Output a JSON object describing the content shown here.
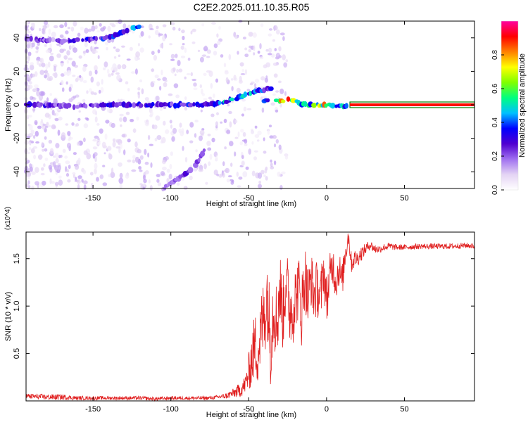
{
  "figure_title": "C2E2.2025.011.10.35.R05",
  "colorbar": {
    "label": "Normalized spectral amplitude",
    "ticks": [
      0.0,
      0.2,
      0.4,
      0.6,
      0.8
    ],
    "tick_labels": [
      "0.0",
      "0.2",
      "0.4",
      "0.6",
      "0.8"
    ],
    "range": [
      0,
      1
    ],
    "colormap": [
      "#ffffff",
      "#e4d4f4",
      "#a070f0",
      "#5000d0",
      "#0000ff",
      "#00c0ff",
      "#00ff80",
      "#80ff00",
      "#ffff00",
      "#ff8000",
      "#ff0000",
      "#ff00a0"
    ]
  },
  "chart_data": [
    {
      "type": "heatmap",
      "title": "",
      "xlabel": "Height of straight line (km)",
      "ylabel": "Frequency (Hz)",
      "xlim": [
        -193,
        95
      ],
      "ylim": [
        -50,
        50
      ],
      "xticks": [
        -150,
        -100,
        -50,
        0,
        50
      ],
      "xtick_labels": [
        "-150",
        "-100",
        "-50",
        "0",
        "50"
      ],
      "yticks": [
        -40,
        -20,
        0,
        20,
        40
      ],
      "ytick_labels": [
        "-40",
        "-20",
        "0",
        "20",
        "40"
      ],
      "line_color": "#008000",
      "tracks": [
        {
          "x": [
            -193,
            -175,
            -160,
            -140,
            -120,
            -100,
            -80,
            -70,
            -60,
            -52,
            -45,
            -40,
            -35
          ],
          "y": [
            0,
            0,
            -1,
            0,
            0,
            0,
            0,
            1,
            3,
            6,
            8,
            9,
            10
          ],
          "amp": [
            0.3,
            0.25,
            0.2,
            0.3,
            0.3,
            0.3,
            0.35,
            0.4,
            0.5,
            0.45,
            0.4,
            0.35,
            0.3
          ]
        },
        {
          "x": [
            -40,
            -35,
            -30,
            -25,
            -20,
            -15,
            -10,
            -5,
            0,
            5,
            10,
            15
          ],
          "y": [
            2,
            4,
            2,
            3,
            2,
            0,
            0,
            0,
            0,
            -1,
            -1,
            0
          ],
          "amp": [
            0.4,
            0.5,
            0.7,
            0.8,
            0.7,
            0.55,
            0.6,
            0.7,
            0.75,
            0.5,
            0.45,
            0.5
          ]
        },
        {
          "x": [
            -193,
            -170,
            -155,
            -140,
            -130,
            -120
          ],
          "y": [
            39,
            38,
            39,
            40,
            44,
            47
          ],
          "amp": [
            0.25,
            0.25,
            0.3,
            0.35,
            0.4,
            0.45
          ]
        },
        {
          "x": [
            -105,
            -95,
            -85,
            -78
          ],
          "y": [
            -50,
            -44,
            -38,
            -26
          ],
          "amp": [
            0.2,
            0.25,
            0.25,
            0.2
          ]
        }
      ],
      "steady_band": {
        "x": [
          15,
          95
        ],
        "y": 0,
        "amp": 0.9
      }
    },
    {
      "type": "line",
      "title": "",
      "xlabel": "Height of straight line (km)",
      "ylabel": "SNR (10 * v/v)",
      "yscale_label": "(x10^4)",
      "xlim": [
        -193,
        95
      ],
      "ylim": [
        0,
        1.78
      ],
      "xticks": [
        -150,
        -100,
        -50,
        0,
        50
      ],
      "xtick_labels": [
        "-150",
        "-100",
        "-50",
        "0",
        "50"
      ],
      "yticks": [
        0.5,
        1.0,
        1.5
      ],
      "ytick_labels": [
        "0.5",
        "1.0",
        "1.5"
      ],
      "line_color": "#e02020",
      "series": [
        {
          "x": [
            -193,
            -180,
            -170,
            -160,
            -150,
            -140,
            -130,
            -120,
            -110,
            -100,
            -90,
            -80,
            -75,
            -70,
            -65,
            -60,
            -55,
            -52,
            -50,
            -48,
            -46,
            -44,
            -42,
            -40,
            -38,
            -36,
            -34,
            -32,
            -30,
            -28,
            -26,
            -24,
            -22,
            -20,
            -18,
            -16,
            -14,
            -12,
            -10,
            -8,
            -6,
            -4,
            -2,
            0,
            2,
            4,
            6,
            8,
            10,
            12,
            14,
            16,
            18,
            20,
            22,
            25,
            28,
            31,
            34,
            37,
            40,
            45,
            50,
            60,
            70,
            80,
            90,
            95
          ],
          "y": [
            0.05,
            0.04,
            0.04,
            0.03,
            0.03,
            0.03,
            0.03,
            0.03,
            0.02,
            0.03,
            0.03,
            0.03,
            0.03,
            0.04,
            0.05,
            0.08,
            0.12,
            0.18,
            0.3,
            0.45,
            0.6,
            0.5,
            0.75,
            0.9,
            1.15,
            0.6,
            1.05,
            0.8,
            1.2,
            0.9,
            1.3,
            1.0,
            0.95,
            1.1,
            1.2,
            0.95,
            1.35,
            1.05,
            1.3,
            1.1,
            1.2,
            1.05,
            1.4,
            1.05,
            1.3,
            1.45,
            1.25,
            1.4,
            1.25,
            1.55,
            1.75,
            1.45,
            1.5,
            1.5,
            1.55,
            1.6,
            1.65,
            1.6,
            1.6,
            1.62,
            1.63,
            1.62,
            1.62,
            1.63,
            1.63,
            1.63,
            1.64,
            1.63
          ],
          "spread": [
            0.03,
            0.03,
            0.03,
            0.02,
            0.02,
            0.02,
            0.02,
            0.02,
            0.02,
            0.02,
            0.02,
            0.02,
            0.02,
            0.02,
            0.03,
            0.05,
            0.08,
            0.1,
            0.2,
            0.3,
            0.35,
            0.35,
            0.4,
            0.45,
            0.5,
            0.45,
            0.45,
            0.45,
            0.4,
            0.4,
            0.35,
            0.4,
            0.4,
            0.35,
            0.35,
            0.4,
            0.35,
            0.35,
            0.3,
            0.3,
            0.3,
            0.3,
            0.25,
            0.25,
            0.25,
            0.22,
            0.2,
            0.2,
            0.18,
            0.15,
            0.12,
            0.1,
            0.1,
            0.08,
            0.08,
            0.06,
            0.05,
            0.05,
            0.04,
            0.04,
            0.04,
            0.03,
            0.03,
            0.03,
            0.03,
            0.03,
            0.03,
            0.03
          ]
        }
      ]
    }
  ]
}
